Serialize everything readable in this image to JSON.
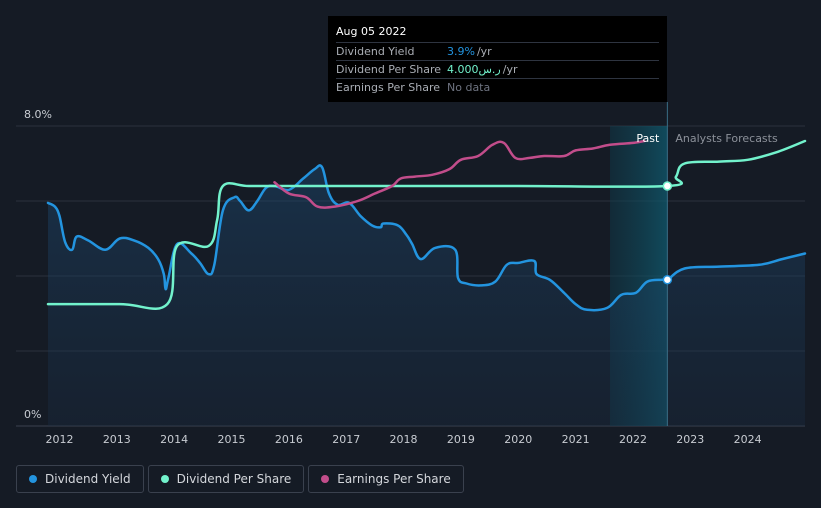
{
  "colors": {
    "background": "#151b25",
    "dividend_yield": "#2394df",
    "dividend_per_share": "#72f2cc",
    "earnings_per_share": "#c24d8b",
    "grid": "#2c323d",
    "axis_text": "#c8ccd2",
    "forecast_band": "#0f4a5a"
  },
  "tooltip": {
    "date": "Aug 05 2022",
    "rows": [
      {
        "label": "Dividend Yield",
        "value": "3.9%",
        "suffix": "/yr"
      },
      {
        "label": "Dividend Per Share",
        "value": "4.000ر.س",
        "suffix": "/yr"
      },
      {
        "label": "Earnings Per Share",
        "value": "No data",
        "suffix": ""
      }
    ]
  },
  "legend": [
    {
      "label": "Dividend Yield",
      "color": "#2394df"
    },
    {
      "label": "Dividend Per Share",
      "color": "#72f2cc"
    },
    {
      "label": "Earnings Per Share",
      "color": "#c24d8b"
    }
  ],
  "chart_data": {
    "type": "line",
    "title": "",
    "xlabel": "",
    "ylabel": "",
    "x_range": [
      2011.8,
      2025.0
    ],
    "ylim": [
      0,
      8.0
    ],
    "y_tick_labels": [
      {
        "value": 8.0,
        "label": "8.0%"
      },
      {
        "value": 0,
        "label": "0%"
      }
    ],
    "x_tick_labels": [
      "2012",
      "2013",
      "2014",
      "2015",
      "2016",
      "2017",
      "2018",
      "2019",
      "2020",
      "2021",
      "2022",
      "2023",
      "2024"
    ],
    "x_ticks": [
      2012,
      2013,
      2014,
      2015,
      2016,
      2017,
      2018,
      2019,
      2020,
      2021,
      2022,
      2023,
      2024
    ],
    "grid": true,
    "past_label": "Past",
    "forecast_label": "Analysts Forecasts",
    "past_band_start": 2021.6,
    "divider_x": 2022.6,
    "series": [
      {
        "name": "Dividend Yield",
        "color": "#2394df",
        "filled": true,
        "points": [
          [
            2011.8,
            5.95
          ],
          [
            2011.92,
            5.85
          ],
          [
            2012.0,
            5.6
          ],
          [
            2012.1,
            4.9
          ],
          [
            2012.22,
            4.7
          ],
          [
            2012.3,
            5.05
          ],
          [
            2012.5,
            4.95
          ],
          [
            2012.8,
            4.7
          ],
          [
            2013.05,
            5.0
          ],
          [
            2013.3,
            4.95
          ],
          [
            2013.55,
            4.75
          ],
          [
            2013.72,
            4.45
          ],
          [
            2013.82,
            4.05
          ],
          [
            2013.85,
            3.65
          ],
          [
            2013.9,
            3.95
          ],
          [
            2014.05,
            4.85
          ],
          [
            2014.3,
            4.6
          ],
          [
            2014.45,
            4.35
          ],
          [
            2014.6,
            4.05
          ],
          [
            2014.7,
            4.3
          ],
          [
            2014.85,
            5.75
          ],
          [
            2015.05,
            6.1
          ],
          [
            2015.15,
            6.0
          ],
          [
            2015.3,
            5.75
          ],
          [
            2015.45,
            6.0
          ],
          [
            2015.6,
            6.35
          ],
          [
            2015.75,
            6.4
          ],
          [
            2016.0,
            6.3
          ],
          [
            2016.25,
            6.6
          ],
          [
            2016.45,
            6.85
          ],
          [
            2016.58,
            6.9
          ],
          [
            2016.7,
            6.2
          ],
          [
            2016.85,
            5.9
          ],
          [
            2017.05,
            5.95
          ],
          [
            2017.25,
            5.6
          ],
          [
            2017.45,
            5.35
          ],
          [
            2017.6,
            5.3
          ],
          [
            2017.65,
            5.4
          ],
          [
            2017.9,
            5.35
          ],
          [
            2018.05,
            5.1
          ],
          [
            2018.15,
            4.85
          ],
          [
            2018.3,
            4.45
          ],
          [
            2018.55,
            4.75
          ],
          [
            2018.9,
            4.7
          ],
          [
            2018.95,
            3.95
          ],
          [
            2019.1,
            3.8
          ],
          [
            2019.35,
            3.75
          ],
          [
            2019.6,
            3.85
          ],
          [
            2019.8,
            4.3
          ],
          [
            2020.0,
            4.35
          ],
          [
            2020.28,
            4.4
          ],
          [
            2020.32,
            4.05
          ],
          [
            2020.55,
            3.9
          ],
          [
            2020.8,
            3.55
          ],
          [
            2021.0,
            3.25
          ],
          [
            2021.2,
            3.1
          ],
          [
            2021.55,
            3.15
          ],
          [
            2021.8,
            3.5
          ],
          [
            2022.05,
            3.55
          ],
          [
            2022.25,
            3.85
          ],
          [
            2022.5,
            3.9
          ],
          [
            2022.6,
            3.9
          ],
          [
            2022.9,
            4.2
          ],
          [
            2023.5,
            4.25
          ],
          [
            2024.2,
            4.3
          ],
          [
            2024.6,
            4.45
          ],
          [
            2025.0,
            4.6
          ]
        ],
        "marker_at": [
          2022.6,
          3.9
        ]
      },
      {
        "name": "Dividend Per Share",
        "color": "#72f2cc",
        "filled": false,
        "points": [
          [
            2011.8,
            3.25
          ],
          [
            2013.05,
            3.25
          ],
          [
            2013.88,
            3.25
          ],
          [
            2014.05,
            4.8
          ],
          [
            2014.6,
            4.8
          ],
          [
            2014.75,
            5.5
          ],
          [
            2014.85,
            6.4
          ],
          [
            2015.3,
            6.4
          ],
          [
            2016.0,
            6.4
          ],
          [
            2018.0,
            6.4
          ],
          [
            2020.0,
            6.4
          ],
          [
            2022.6,
            6.4
          ],
          [
            2022.75,
            6.65
          ],
          [
            2022.9,
            7.0
          ],
          [
            2023.5,
            7.05
          ],
          [
            2024.0,
            7.1
          ],
          [
            2024.5,
            7.3
          ],
          [
            2025.0,
            7.6
          ]
        ],
        "marker_at": [
          2022.6,
          6.4
        ]
      },
      {
        "name": "Earnings Per Share",
        "color": "#c24d8b",
        "filled": false,
        "points": [
          [
            2015.75,
            6.5
          ],
          [
            2016.0,
            6.2
          ],
          [
            2016.3,
            6.1
          ],
          [
            2016.5,
            5.85
          ],
          [
            2016.8,
            5.85
          ],
          [
            2017.2,
            6.0
          ],
          [
            2017.5,
            6.2
          ],
          [
            2017.8,
            6.4
          ],
          [
            2017.95,
            6.6
          ],
          [
            2018.2,
            6.65
          ],
          [
            2018.5,
            6.7
          ],
          [
            2018.8,
            6.85
          ],
          [
            2019.0,
            7.1
          ],
          [
            2019.3,
            7.2
          ],
          [
            2019.55,
            7.5
          ],
          [
            2019.75,
            7.55
          ],
          [
            2019.95,
            7.15
          ],
          [
            2020.2,
            7.15
          ],
          [
            2020.45,
            7.2
          ],
          [
            2020.8,
            7.2
          ],
          [
            2021.0,
            7.35
          ],
          [
            2021.3,
            7.4
          ],
          [
            2021.6,
            7.5
          ],
          [
            2022.0,
            7.55
          ],
          [
            2022.2,
            7.6
          ]
        ],
        "marker_at": null
      }
    ]
  }
}
